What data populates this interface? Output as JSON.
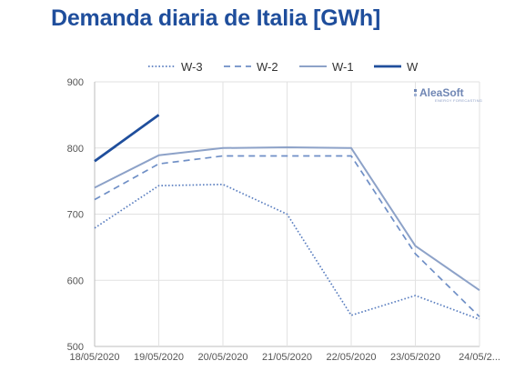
{
  "chart_data": {
    "type": "line",
    "title": "Demanda diaria de Italia [GWh]",
    "xlabel": "",
    "ylabel": "",
    "categories": [
      "18/05/2020",
      "19/05/2020",
      "20/05/2020",
      "21/05/2020",
      "22/05/2020",
      "23/05/2020",
      "24/05/2..."
    ],
    "ylim": [
      500,
      900
    ],
    "yticks": [
      500,
      600,
      700,
      800,
      900
    ],
    "grid": true,
    "legend_position": "top",
    "series": [
      {
        "name": "W-3",
        "style": "dotted",
        "color": "#5b7fc0",
        "values": [
          679,
          743,
          745,
          700,
          547,
          577,
          541
        ]
      },
      {
        "name": "W-2",
        "style": "dashed",
        "color": "#6f8fc6",
        "values": [
          722,
          776,
          788,
          788,
          788,
          640,
          545
        ]
      },
      {
        "name": "W-1",
        "style": "solid",
        "color": "#8da2c8",
        "values": [
          740,
          789,
          800,
          801,
          800,
          652,
          585
        ]
      },
      {
        "name": "W",
        "style": "solid-thick",
        "color": "#1f4e9c",
        "values": [
          780,
          850,
          null,
          null,
          null,
          null,
          null
        ]
      }
    ]
  },
  "logo": {
    "name": "AleaSoft",
    "tagline": "ENERGY FORECASTING"
  }
}
